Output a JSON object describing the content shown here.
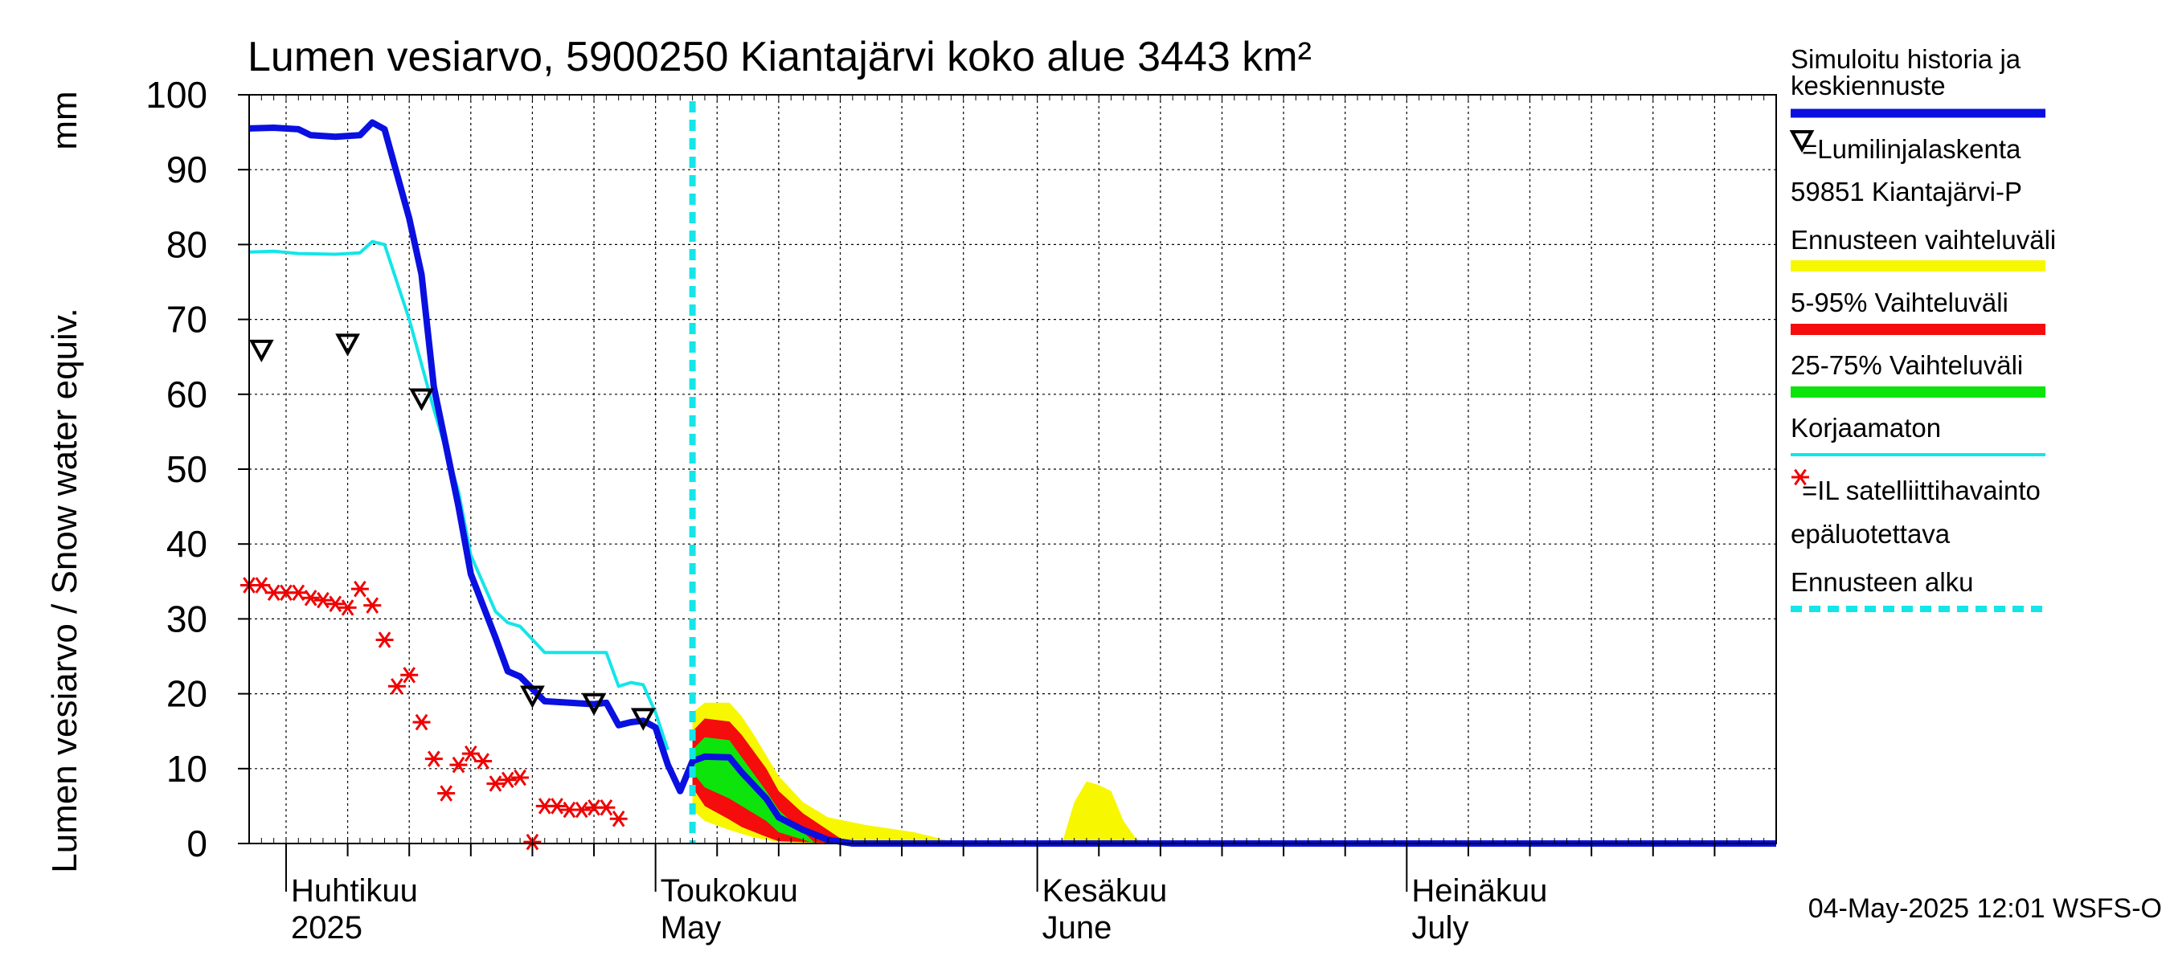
{
  "chart_data": {
    "type": "area",
    "title": "Lumen vesiarvo, 5900250 Kiantajärvi koko alue 3443 km²",
    "ylabel": "Lumen vesiarvo / Snow water equiv.",
    "yunit": "mm",
    "ylim": [
      0,
      100
    ],
    "yticks": [
      0,
      10,
      20,
      30,
      40,
      50,
      60,
      70,
      80,
      90,
      100
    ],
    "xlim": [
      "2025-03-29",
      "2025-07-31"
    ],
    "grid": true,
    "legend_position": "right",
    "month_labels": [
      {
        "date": "2025-04-01",
        "fi": "Huhtikuu",
        "en": "2025"
      },
      {
        "date": "2025-05-01",
        "fi": "Toukokuu",
        "en": "May"
      },
      {
        "date": "2025-06-01",
        "fi": "Kesäkuu",
        "en": "June"
      },
      {
        "date": "2025-07-01",
        "fi": "Heinäkuu",
        "en": "July"
      }
    ],
    "forecast_start": "2025-05-04",
    "series": [
      {
        "name": "Simuloitu historia ja keskiennuste",
        "color": "#0a10e0",
        "points": [
          [
            "2025-03-29",
            95.5
          ],
          [
            "2025-03-31",
            95.6
          ],
          [
            "2025-04-02",
            95.4
          ],
          [
            "2025-04-03",
            94.6
          ],
          [
            "2025-04-05",
            94.4
          ],
          [
            "2025-04-07",
            94.6
          ],
          [
            "2025-04-08",
            96.3
          ],
          [
            "2025-04-09",
            95.4
          ],
          [
            "2025-04-11",
            83.5
          ],
          [
            "2025-04-12",
            76.0
          ],
          [
            "2025-04-13",
            61.0
          ],
          [
            "2025-04-15",
            45.0
          ],
          [
            "2025-04-16",
            36.0
          ],
          [
            "2025-04-18",
            27.5
          ],
          [
            "2025-04-19",
            23.0
          ],
          [
            "2025-04-20",
            22.3
          ],
          [
            "2025-04-22",
            19.0
          ],
          [
            "2025-04-24",
            18.8
          ],
          [
            "2025-04-26",
            18.6
          ],
          [
            "2025-04-27",
            18.8
          ],
          [
            "2025-04-28",
            15.8
          ],
          [
            "2025-04-29",
            16.2
          ],
          [
            "2025-04-30",
            16.4
          ],
          [
            "2025-05-01",
            15.5
          ],
          [
            "2025-05-02",
            10.5
          ],
          [
            "2025-05-03",
            7.0
          ],
          [
            "2025-05-04",
            11.0
          ],
          [
            "2025-05-05",
            11.6
          ],
          [
            "2025-05-07",
            11.5
          ],
          [
            "2025-05-08",
            9.5
          ],
          [
            "2025-05-10",
            6.0
          ],
          [
            "2025-05-11",
            3.5
          ],
          [
            "2025-05-13",
            1.8
          ],
          [
            "2025-05-15",
            0.5
          ],
          [
            "2025-05-17",
            0
          ],
          [
            "2025-07-31",
            0
          ]
        ]
      },
      {
        "name": "Korjaamaton",
        "color": "#14e5e8",
        "points": [
          [
            "2025-03-29",
            79.0
          ],
          [
            "2025-03-31",
            79.1
          ],
          [
            "2025-04-02",
            78.8
          ],
          [
            "2025-04-05",
            78.7
          ],
          [
            "2025-04-07",
            78.9
          ],
          [
            "2025-04-08",
            80.4
          ],
          [
            "2025-04-09",
            80.0
          ],
          [
            "2025-04-11",
            70.0
          ],
          [
            "2025-04-13",
            58.0
          ],
          [
            "2025-04-15",
            47.0
          ],
          [
            "2025-04-16",
            38.5
          ],
          [
            "2025-04-18",
            31.0
          ],
          [
            "2025-04-19",
            29.5
          ],
          [
            "2025-04-20",
            29.0
          ],
          [
            "2025-04-22",
            25.5
          ],
          [
            "2025-04-27",
            25.5
          ],
          [
            "2025-04-28",
            21.0
          ],
          [
            "2025-04-29",
            21.5
          ],
          [
            "2025-04-30",
            21.2
          ],
          [
            "2025-05-01",
            17.5
          ],
          [
            "2025-05-02",
            12.5
          ]
        ]
      }
    ],
    "bands": [
      {
        "name": "Ennusteen vaihteluväli",
        "color": "#f7f700",
        "upper": [
          [
            "2025-05-04",
            17.5
          ],
          [
            "2025-05-05",
            18.8
          ],
          [
            "2025-05-07",
            18.8
          ],
          [
            "2025-05-08",
            17.0
          ],
          [
            "2025-05-09",
            14.5
          ],
          [
            "2025-05-11",
            9.0
          ],
          [
            "2025-05-13",
            5.5
          ],
          [
            "2025-05-15",
            3.5
          ],
          [
            "2025-05-18",
            2.5
          ],
          [
            "2025-05-22",
            1.5
          ],
          [
            "2025-05-25",
            0.3
          ]
        ],
        "lower": [
          [
            "2025-05-25",
            0
          ],
          [
            "2025-05-15",
            0
          ],
          [
            "2025-05-11",
            0.2
          ],
          [
            "2025-05-09",
            0.8
          ],
          [
            "2025-05-07",
            1.8
          ],
          [
            "2025-05-05",
            3.0
          ],
          [
            "2025-05-04",
            4.5
          ]
        ]
      },
      {
        "name": "Ennusteen vaihteluväli",
        "color": "#f7f700",
        "upper": [
          [
            "2025-06-03",
            0
          ],
          [
            "2025-06-04",
            5.5
          ],
          [
            "2025-06-05",
            8.3
          ],
          [
            "2025-06-06",
            7.8
          ],
          [
            "2025-06-07",
            7.0
          ],
          [
            "2025-06-08",
            3.0
          ],
          [
            "2025-06-09",
            0.7
          ],
          [
            "2025-06-10",
            0
          ]
        ],
        "lower": [
          [
            "2025-06-10",
            0
          ],
          [
            "2025-06-03",
            0
          ]
        ]
      },
      {
        "name": "5-95% Vaihteluväli",
        "color": "#f50c0c",
        "upper": [
          [
            "2025-05-04",
            15.0
          ],
          [
            "2025-05-05",
            16.7
          ],
          [
            "2025-05-07",
            16.3
          ],
          [
            "2025-05-08",
            14.5
          ],
          [
            "2025-05-10",
            10.0
          ],
          [
            "2025-05-11",
            7.0
          ],
          [
            "2025-05-13",
            4.0
          ],
          [
            "2025-05-15",
            1.8
          ],
          [
            "2025-05-16",
            0.7
          ],
          [
            "2025-05-17",
            0
          ]
        ],
        "lower": [
          [
            "2025-05-17",
            0
          ],
          [
            "2025-05-11",
            0.3
          ],
          [
            "2025-05-10",
            0.9
          ],
          [
            "2025-05-08",
            2.2
          ],
          [
            "2025-05-07",
            3.2
          ],
          [
            "2025-05-05",
            5.0
          ],
          [
            "2025-05-04",
            7.5
          ]
        ]
      },
      {
        "name": "25-75% Vaihteluväli",
        "color": "#0ce40c",
        "upper": [
          [
            "2025-05-04",
            12.5
          ],
          [
            "2025-05-05",
            14.2
          ],
          [
            "2025-05-07",
            13.8
          ],
          [
            "2025-05-08",
            11.5
          ],
          [
            "2025-05-10",
            7.0
          ],
          [
            "2025-05-11",
            4.5
          ],
          [
            "2025-05-13",
            1.5
          ],
          [
            "2025-05-14",
            0
          ]
        ],
        "lower": [
          [
            "2025-05-14",
            0
          ],
          [
            "2025-05-11",
            1.5
          ],
          [
            "2025-05-10",
            3.0
          ],
          [
            "2025-05-08",
            5.0
          ],
          [
            "2025-05-07",
            6.0
          ],
          [
            "2025-05-05",
            7.5
          ],
          [
            "2025-05-04",
            9.5
          ]
        ]
      }
    ],
    "observations": [
      {
        "name": "=Lumilinjalaskenta 59851 Kiantajärvi-P",
        "marker": "triangle-down",
        "color": "#000000",
        "points": [
          [
            "2025-03-30",
            66
          ],
          [
            "2025-04-06",
            66.8
          ],
          [
            "2025-04-12",
            59.5
          ],
          [
            "2025-04-21",
            19.8
          ],
          [
            "2025-04-26",
            18.8
          ],
          [
            "2025-04-30",
            16.8
          ]
        ]
      },
      {
        "name": "=IL satelliittihavainto",
        "marker": "asterisk",
        "color": "#f00000",
        "points": [
          [
            "2025-03-29",
            34.5
          ],
          [
            "2025-03-30",
            34.5
          ],
          [
            "2025-03-31",
            33.5
          ],
          [
            "2025-04-01",
            33.5
          ],
          [
            "2025-04-02",
            33.5
          ],
          [
            "2025-04-03",
            32.8
          ],
          [
            "2025-04-04",
            32.5
          ],
          [
            "2025-04-05",
            32.0
          ],
          [
            "2025-04-06",
            31.5
          ],
          [
            "2025-04-07",
            34.0
          ],
          [
            "2025-04-08",
            31.8
          ],
          [
            "2025-04-09",
            27.2
          ],
          [
            "2025-04-10",
            21.0
          ],
          [
            "2025-04-11",
            22.5
          ],
          [
            "2025-04-12",
            16.2
          ],
          [
            "2025-04-13",
            11.3
          ],
          [
            "2025-04-14",
            6.7
          ],
          [
            "2025-04-15",
            10.5
          ],
          [
            "2025-04-16",
            12.0
          ],
          [
            "2025-04-17",
            11.0
          ],
          [
            "2025-04-18",
            8.0
          ],
          [
            "2025-04-19",
            8.5
          ],
          [
            "2025-04-20",
            8.8
          ],
          [
            "2025-04-21",
            0.2
          ],
          [
            "2025-04-22",
            5.0
          ],
          [
            "2025-04-23",
            5.0
          ],
          [
            "2025-04-24",
            4.5
          ],
          [
            "2025-04-25",
            4.5
          ],
          [
            "2025-04-26",
            4.8
          ],
          [
            "2025-04-27",
            4.8
          ],
          [
            "2025-04-28",
            3.3
          ]
        ]
      }
    ],
    "legend": [
      {
        "label": "Simuloitu historia ja keskiennuste",
        "style": "line",
        "color": "#0a10e0"
      },
      {
        "label": "=Lumilinjalaskenta",
        "style": "triangle",
        "color": "#000000"
      },
      {
        "label": "59851 Kiantajärvi-P",
        "style": "text"
      },
      {
        "label": "Ennusteen vaihteluväli",
        "style": "band",
        "color": "#f7f700"
      },
      {
        "label": "5-95% Vaihteluväli",
        "style": "band",
        "color": "#f50c0c"
      },
      {
        "label": "25-75% Vaihteluväli",
        "style": "band",
        "color": "#0ce40c"
      },
      {
        "label": "Korjaamaton",
        "style": "thinline",
        "color": "#14e5e8"
      },
      {
        "label": "=IL satelliittihavainto",
        "style": "asterisk",
        "color": "#f00000"
      },
      {
        "label": "epäluotettava",
        "style": "text"
      },
      {
        "label": "Ennusteen alku",
        "style": "dashed",
        "color": "#14e5e8"
      }
    ],
    "footer": "04-May-2025 12:01 WSFS-O"
  }
}
